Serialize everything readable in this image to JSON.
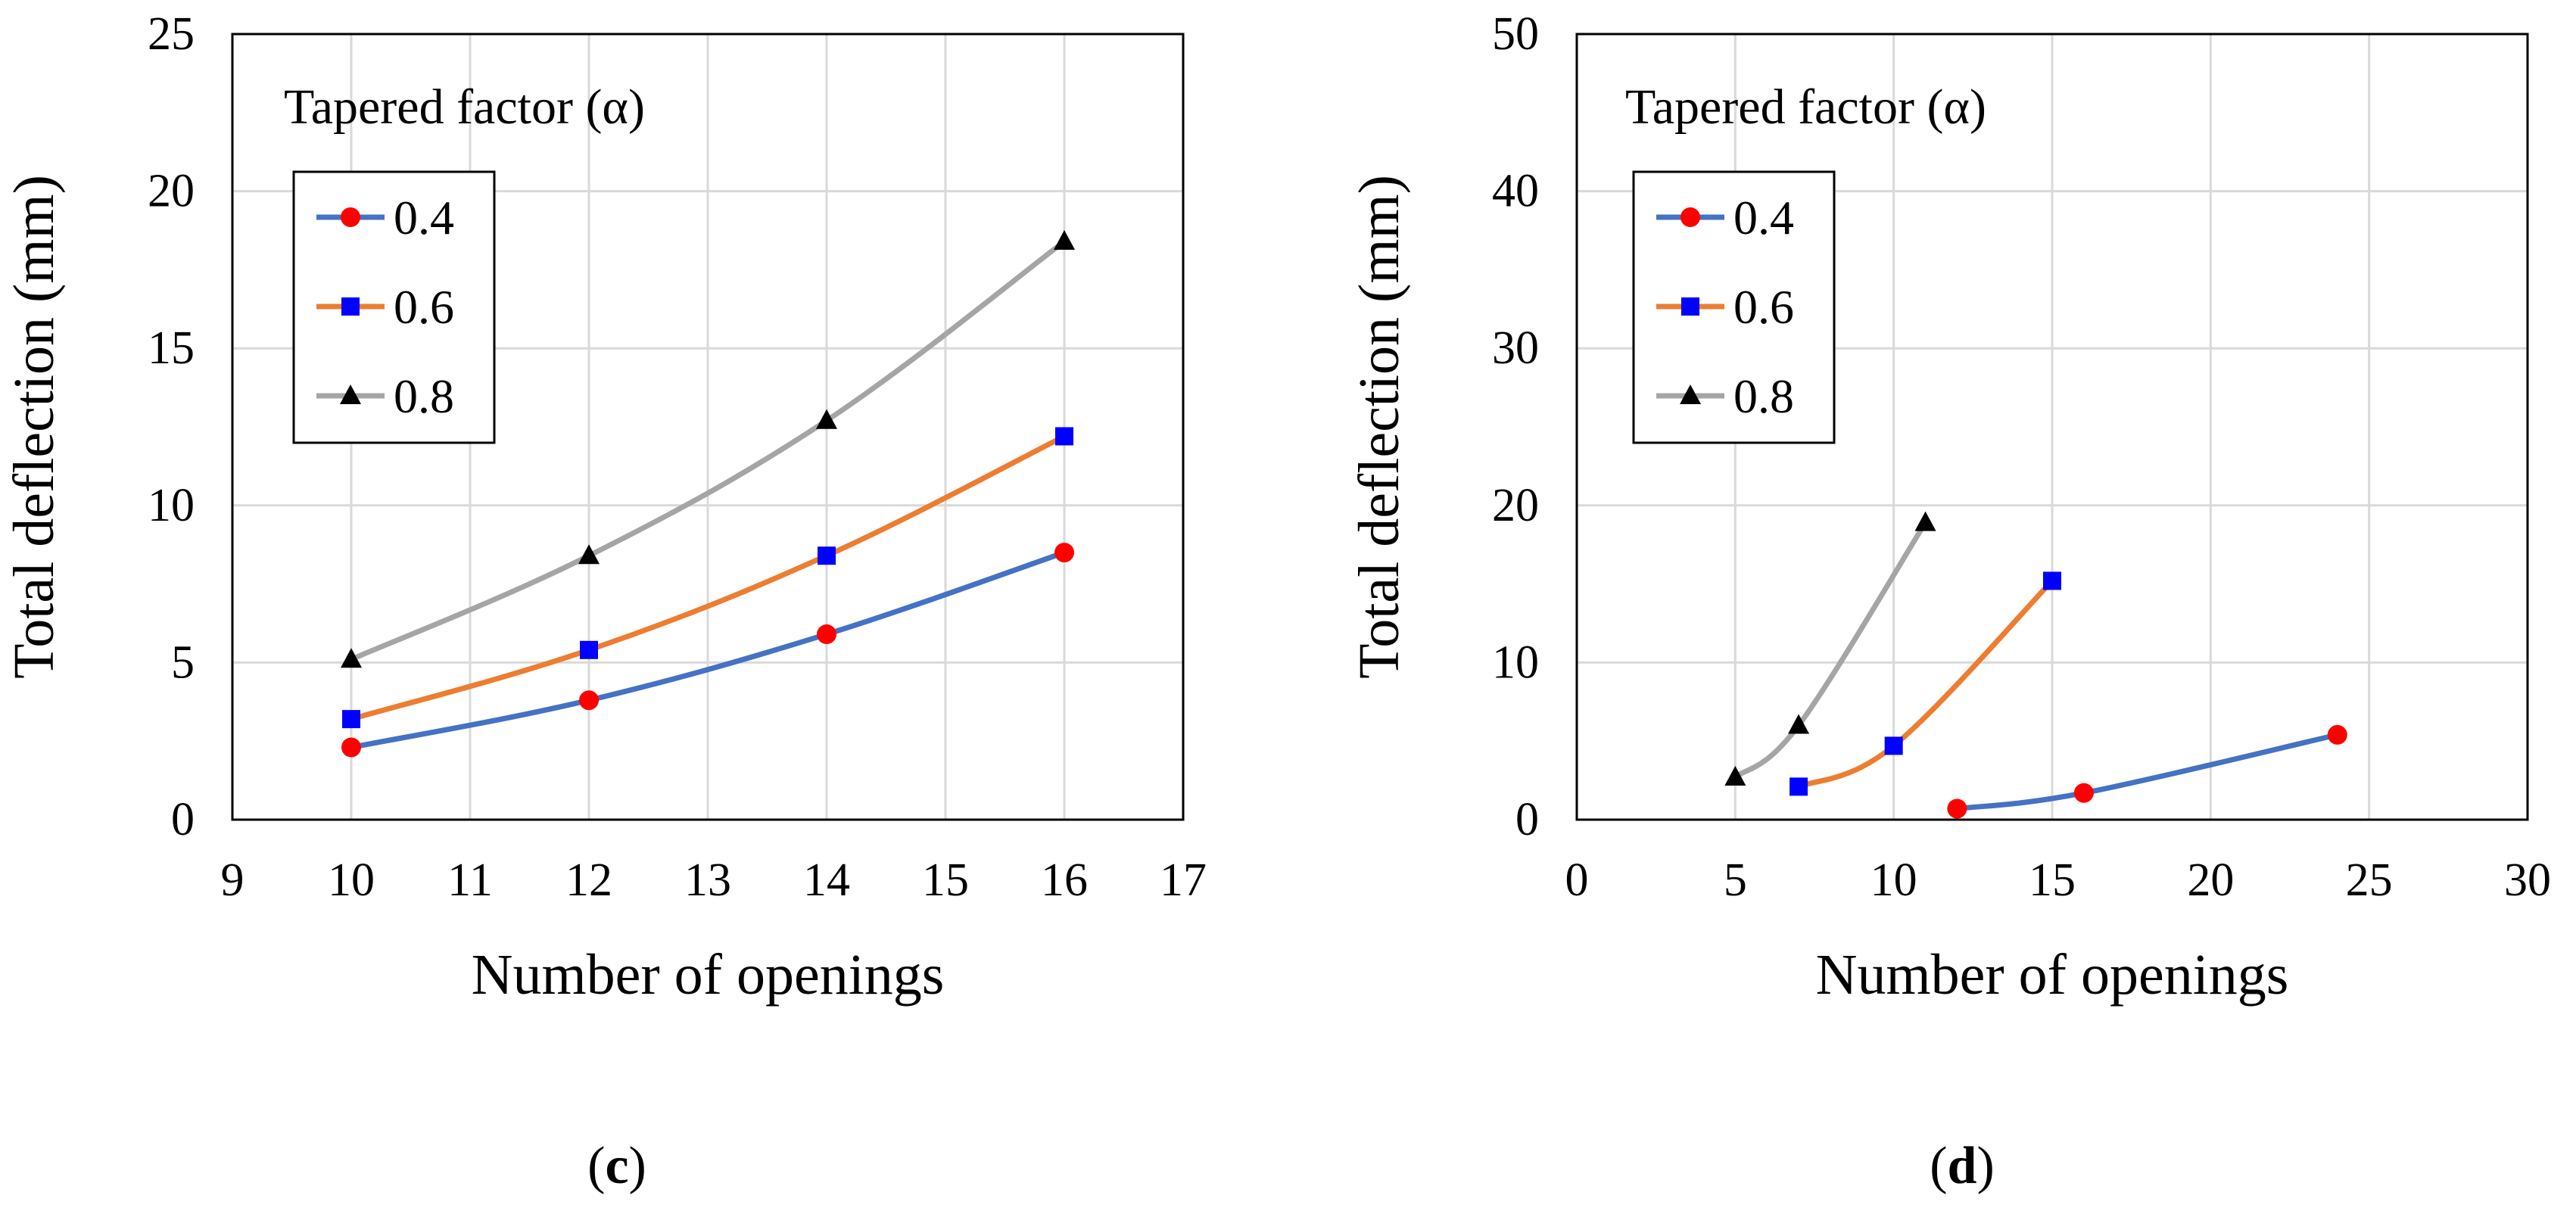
{
  "chart_data": [
    {
      "type": "line",
      "panel": "c",
      "xlabel": "Number of openings",
      "ylabel": "Total deflection (mm)",
      "xlim": [
        9,
        17
      ],
      "ylim": [
        0,
        25
      ],
      "xticks": [
        9,
        10,
        11,
        12,
        13,
        14,
        15,
        16,
        17
      ],
      "yticks": [
        0,
        5,
        10,
        15,
        20,
        25
      ],
      "grid": true,
      "legend": {
        "title": "Tapered factor (α)",
        "position": "top-left"
      },
      "series": [
        {
          "name": "0.4",
          "color": "#4472c4",
          "marker": "circle",
          "marker_color": "#ff0000",
          "x": [
            10,
            12,
            14,
            16
          ],
          "y": [
            2.3,
            3.8,
            5.9,
            8.5
          ]
        },
        {
          "name": "0.6",
          "color": "#ed7d31",
          "marker": "square",
          "marker_color": "#0000ff",
          "x": [
            10,
            12,
            14,
            16
          ],
          "y": [
            3.2,
            5.4,
            8.4,
            12.2
          ]
        },
        {
          "name": "0.8",
          "color": "#a5a5a5",
          "marker": "triangle",
          "marker_color": "#000000",
          "x": [
            10,
            12,
            14,
            16
          ],
          "y": [
            5.1,
            8.4,
            12.7,
            18.4
          ]
        }
      ]
    },
    {
      "type": "line",
      "panel": "d",
      "xlabel": "Number of openings",
      "ylabel": "Total deflection (mm)",
      "xlim": [
        0,
        30
      ],
      "ylim": [
        0,
        50
      ],
      "xticks": [
        0,
        5,
        10,
        15,
        20,
        25,
        30
      ],
      "yticks": [
        0,
        10,
        20,
        30,
        40,
        50
      ],
      "grid": true,
      "legend": {
        "title": "Tapered factor (α)",
        "position": "top-left"
      },
      "series": [
        {
          "name": "0.4",
          "color": "#4472c4",
          "marker": "circle",
          "marker_color": "#ff0000",
          "x": [
            12,
            16,
            24
          ],
          "y": [
            0.7,
            1.7,
            5.4
          ]
        },
        {
          "name": "0.6",
          "color": "#ed7d31",
          "marker": "square",
          "marker_color": "#0000ff",
          "x": [
            7,
            10,
            15
          ],
          "y": [
            2.1,
            4.7,
            15.2
          ]
        },
        {
          "name": "0.8",
          "color": "#a5a5a5",
          "marker": "triangle",
          "marker_color": "#000000",
          "x": [
            5,
            7,
            11
          ],
          "y": [
            2.7,
            6.0,
            18.9
          ]
        }
      ]
    }
  ],
  "captions": {
    "c": "c",
    "d": "d"
  }
}
